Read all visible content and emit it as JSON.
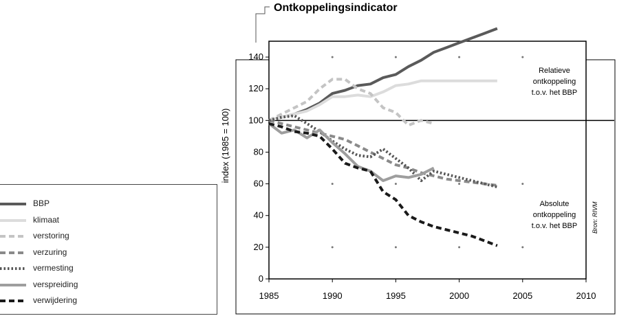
{
  "title": "Ontkoppelingsindicator",
  "source": "Bron: RIVM",
  "annotations": {
    "top": [
      "Relatieve",
      "ontkoppeling",
      "t.o.v. het BBP"
    ],
    "bottom": [
      "Absolute",
      "ontkoppeling",
      "t.o.v. het BBP"
    ]
  },
  "chart_data": {
    "type": "line",
    "ylabel": "index (1985 = 100)",
    "xlabel": "",
    "xlim": [
      1985,
      2010
    ],
    "ylim": [
      0,
      150
    ],
    "xticks": [
      1985,
      1990,
      1995,
      2000,
      2005,
      2010
    ],
    "yticks": [
      0,
      20,
      40,
      60,
      80,
      100,
      120,
      140
    ],
    "reference_line": 100,
    "grid": "dots",
    "legend_position": "left",
    "series": [
      {
        "name": "BBP",
        "color": "#5a5a5a",
        "style": "solid",
        "width": 4,
        "x": [
          1985,
          1986,
          1987,
          1988,
          1989,
          1990,
          1991,
          1992,
          1993,
          1994,
          1995,
          1996,
          1997,
          1998,
          1999,
          2000,
          2001,
          2002,
          2003
        ],
        "y": [
          100,
          102,
          104,
          107,
          111,
          117,
          119,
          122,
          123,
          127,
          129,
          134,
          138,
          143,
          146,
          149,
          152,
          155,
          158
        ]
      },
      {
        "name": "klimaat",
        "color": "#dcdcdc",
        "style": "solid",
        "width": 4,
        "x": [
          1985,
          1986,
          1987,
          1988,
          1989,
          1990,
          1991,
          1992,
          1993,
          1994,
          1995,
          1996,
          1997,
          1998,
          1999,
          2000,
          2001,
          2002,
          2003
        ],
        "y": [
          100,
          102,
          104,
          106,
          110,
          115,
          115,
          116,
          115,
          118,
          122,
          123,
          125,
          125,
          125,
          125,
          125,
          125,
          125
        ]
      },
      {
        "name": "verstoring",
        "color": "#c4c4c4",
        "style": "dash",
        "width": 4,
        "x": [
          1985,
          1986,
          1987,
          1988,
          1989,
          1990,
          1991,
          1992,
          1993,
          1994,
          1995,
          1996,
          1997,
          1998
        ],
        "y": [
          100,
          104,
          108,
          112,
          120,
          126,
          126,
          120,
          117,
          108,
          105,
          97,
          100,
          98
        ]
      },
      {
        "name": "verzuring",
        "color": "#8a8a8a",
        "style": "dash",
        "width": 4,
        "x": [
          1985,
          1986,
          1987,
          1988,
          1989,
          1990,
          1991,
          1992,
          1993,
          1994,
          1995,
          1996,
          1997,
          1998,
          1999,
          2000,
          2001,
          2002,
          2003
        ],
        "y": [
          100,
          98,
          96,
          94,
          92,
          90,
          88,
          84,
          80,
          76,
          72,
          70,
          67,
          65,
          63,
          62,
          61,
          60,
          59
        ]
      },
      {
        "name": "vermesting",
        "color": "#555555",
        "style": "dot",
        "width": 4,
        "x": [
          1985,
          1986,
          1987,
          1988,
          1989,
          1990,
          1991,
          1992,
          1993,
          1994,
          1995,
          1996,
          1997,
          1998,
          1999,
          2000,
          2001,
          2002,
          2003
        ],
        "y": [
          100,
          102,
          103,
          98,
          93,
          87,
          82,
          78,
          77,
          82,
          76,
          70,
          62,
          68,
          66,
          64,
          62,
          60,
          58
        ]
      },
      {
        "name": "verspreiding",
        "color": "#9e9e9e",
        "style": "solid",
        "width": 4,
        "x": [
          1985,
          1986,
          1987,
          1988,
          1989,
          1990,
          1991,
          1992,
          1993,
          1994,
          1995,
          1996,
          1997,
          1998
        ],
        "y": [
          98,
          92,
          94,
          89,
          94,
          86,
          79,
          71,
          68,
          62,
          65,
          64,
          66,
          70
        ]
      },
      {
        "name": "verwijdering",
        "color": "#1a1a1a",
        "style": "dash",
        "width": 4,
        "x": [
          1985,
          1986,
          1987,
          1988,
          1989,
          1990,
          1991,
          1992,
          1993,
          1994,
          1995,
          1996,
          1997,
          1998,
          1999,
          2000,
          2001,
          2002,
          2003
        ],
        "y": [
          98,
          96,
          93,
          92,
          90,
          82,
          73,
          70,
          68,
          55,
          50,
          40,
          36,
          33,
          31,
          29,
          27,
          24,
          21
        ]
      }
    ]
  }
}
